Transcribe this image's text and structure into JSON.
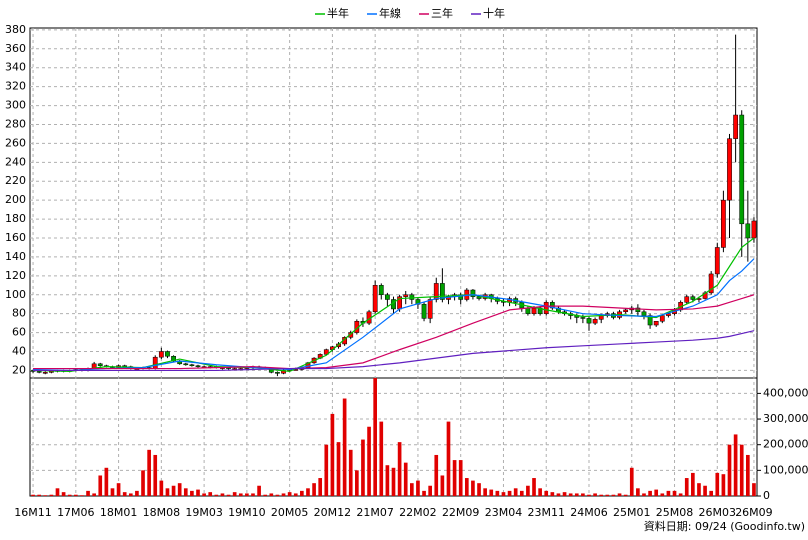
{
  "chart_data": [
    {
      "type": "candlestick",
      "categories": [
        "16M11",
        null,
        null,
        null,
        null,
        null,
        null,
        "17M06",
        null,
        null,
        null,
        null,
        null,
        null,
        "18M01",
        null,
        null,
        null,
        null,
        null,
        null,
        "18M08",
        null,
        null,
        null,
        null,
        null,
        null,
        "19M03",
        null,
        null,
        null,
        null,
        null,
        null,
        "19M10",
        null,
        null,
        null,
        null,
        null,
        null,
        "20M05",
        null,
        null,
        null,
        null,
        null,
        null,
        "20M12",
        null,
        null,
        null,
        null,
        null,
        null,
        "21M07",
        null,
        null,
        null,
        null,
        null,
        null,
        "22M02",
        null,
        null,
        null,
        null,
        null,
        null,
        "22M09",
        null,
        null,
        null,
        null,
        null,
        null,
        "23M04",
        null,
        null,
        null,
        null,
        null,
        null,
        "23M11",
        null,
        null,
        null,
        null,
        null,
        null,
        "24M06",
        null,
        null,
        null,
        null,
        null,
        null,
        "25M01",
        null,
        null,
        null,
        null,
        null,
        null,
        "25M08",
        null,
        null,
        null,
        null,
        null,
        null,
        "26M03",
        null,
        null,
        null,
        null,
        null,
        "26M09"
      ],
      "open": [
        20,
        19,
        18,
        18,
        19,
        20,
        19,
        20,
        21,
        20,
        22,
        27,
        25,
        24,
        23,
        25,
        24,
        22,
        22,
        23,
        22,
        34,
        40,
        35,
        30,
        27,
        26,
        25,
        24,
        24,
        24,
        23,
        23,
        22,
        22,
        22,
        23,
        24,
        23,
        22,
        18,
        17,
        20,
        21,
        21,
        23,
        28,
        33,
        37,
        42,
        45,
        48,
        55,
        60,
        72,
        70,
        82,
        110,
        100,
        95,
        85,
        98,
        100,
        95,
        90,
        75,
        95,
        112,
        95,
        98,
        100,
        95,
        105,
        98,
        96,
        100,
        96,
        93,
        92,
        96,
        92,
        86,
        80,
        86,
        80,
        92,
        86,
        82,
        80,
        78,
        76,
        75,
        70,
        74,
        78,
        80,
        76,
        82,
        84,
        86,
        82,
        78,
        68,
        72,
        78,
        80,
        84,
        92,
        98,
        95,
        96,
        102,
        122,
        150,
        200,
        265,
        290,
        175,
        160
      ],
      "high": [
        21,
        20,
        19,
        20,
        21,
        21,
        21,
        22,
        22,
        23,
        29,
        28,
        26,
        25,
        26,
        26,
        25,
        23,
        24,
        24,
        36,
        44,
        41,
        36,
        31,
        28,
        27,
        26,
        25,
        25,
        25,
        24,
        24,
        23,
        23,
        24,
        25,
        25,
        24,
        23,
        19,
        21,
        22,
        23,
        24,
        29,
        34,
        38,
        43,
        46,
        50,
        56,
        62,
        74,
        76,
        84,
        115,
        112,
        102,
        98,
        100,
        104,
        102,
        97,
        92,
        98,
        118,
        128,
        100,
        102,
        102,
        107,
        106,
        100,
        102,
        101,
        98,
        96,
        98,
        98,
        94,
        88,
        88,
        88,
        94,
        94,
        88,
        84,
        82,
        80,
        79,
        77,
        76,
        80,
        82,
        82,
        84,
        86,
        88,
        90,
        84,
        80,
        72,
        76,
        82,
        86,
        94,
        100,
        100,
        98,
        104,
        125,
        155,
        210,
        270,
        375,
        295,
        210,
        182
      ],
      "low": [
        17,
        17,
        16,
        17,
        18,
        18,
        18,
        19,
        19,
        19,
        21,
        24,
        23,
        22,
        22,
        23,
        21,
        21,
        21,
        21,
        21,
        32,
        33,
        29,
        26,
        25,
        24,
        23,
        22,
        22,
        22,
        21,
        21,
        20,
        20,
        21,
        21,
        22,
        21,
        17,
        14,
        16,
        19,
        20,
        20,
        22,
        27,
        32,
        36,
        40,
        43,
        46,
        53,
        58,
        66,
        68,
        80,
        95,
        88,
        80,
        82,
        90,
        90,
        85,
        72,
        70,
        92,
        92,
        90,
        94,
        90,
        93,
        95,
        94,
        94,
        92,
        90,
        88,
        88,
        88,
        82,
        78,
        78,
        78,
        78,
        84,
        80,
        78,
        74,
        70,
        70,
        62,
        68,
        70,
        76,
        74,
        74,
        80,
        80,
        78,
        74,
        64,
        66,
        70,
        76,
        78,
        82,
        90,
        92,
        92,
        95,
        100,
        118,
        145,
        160,
        240,
        140,
        135,
        155
      ],
      "close": [
        19,
        18,
        18,
        19,
        20,
        19,
        20,
        21,
        20,
        22,
        27,
        25,
        24,
        23,
        25,
        24,
        22,
        22,
        23,
        22,
        34,
        40,
        35,
        30,
        27,
        26,
        25,
        24,
        24,
        24,
        23,
        23,
        22,
        22,
        22,
        23,
        24,
        23,
        22,
        18,
        17,
        20,
        21,
        21,
        23,
        28,
        33,
        37,
        42,
        45,
        48,
        55,
        60,
        72,
        70,
        82,
        110,
        100,
        95,
        85,
        98,
        100,
        95,
        90,
        75,
        95,
        112,
        95,
        98,
        100,
        95,
        105,
        98,
        96,
        100,
        96,
        93,
        92,
        96,
        92,
        86,
        80,
        86,
        80,
        92,
        86,
        82,
        80,
        78,
        76,
        75,
        70,
        74,
        78,
        80,
        76,
        82,
        84,
        86,
        82,
        78,
        68,
        72,
        78,
        80,
        84,
        92,
        98,
        95,
        96,
        102,
        122,
        150,
        200,
        265,
        290,
        175,
        160,
        178
      ],
      "up_color": "#ff0000",
      "down_color": "#00a000",
      "series": [
        {
          "name": "半年",
          "color": "#00c000",
          "x": [
            0,
            6,
            12,
            18,
            24,
            30,
            36,
            42,
            48,
            54,
            60,
            66,
            72,
            78,
            84,
            90,
            96,
            102,
            108,
            112,
            114,
            116,
            118
          ],
          "values": [
            20,
            19,
            24,
            23,
            32,
            24,
            23,
            19,
            36,
            70,
            96,
            98,
            100,
            92,
            84,
            77,
            79,
            76,
            93,
            110,
            130,
            150,
            160
          ]
        },
        {
          "name": "年線",
          "color": "#0070ff",
          "x": [
            0,
            6,
            12,
            18,
            24,
            30,
            36,
            42,
            48,
            54,
            60,
            66,
            72,
            78,
            84,
            90,
            96,
            102,
            108,
            112,
            114,
            116,
            118
          ],
          "values": [
            21,
            20,
            22,
            23,
            30,
            26,
            23,
            21,
            28,
            55,
            85,
            96,
            100,
            95,
            88,
            80,
            78,
            77,
            88,
            100,
            115,
            125,
            138
          ]
        },
        {
          "name": "三年",
          "color": "#d00060",
          "x": [
            0,
            6,
            12,
            18,
            24,
            30,
            36,
            42,
            48,
            54,
            60,
            66,
            72,
            78,
            84,
            90,
            96,
            102,
            108,
            112,
            114,
            116,
            118
          ],
          "values": [
            22,
            22,
            22,
            22,
            22,
            23,
            24,
            22,
            23,
            28,
            42,
            55,
            70,
            84,
            88,
            88,
            86,
            84,
            85,
            88,
            92,
            96,
            100
          ]
        },
        {
          "name": "十年",
          "color": "#6020c0",
          "x": [
            0,
            6,
            12,
            18,
            24,
            30,
            36,
            42,
            48,
            54,
            60,
            66,
            72,
            78,
            84,
            90,
            96,
            102,
            108,
            112,
            114,
            116,
            118
          ],
          "values": [
            20,
            20,
            20,
            20,
            20,
            20,
            21,
            22,
            22,
            24,
            28,
            33,
            38,
            41,
            44,
            46,
            48,
            50,
            52,
            54,
            56,
            59,
            62
          ]
        }
      ],
      "ylim": [
        12,
        382
      ],
      "yticks": [
        20,
        40,
        60,
        80,
        100,
        120,
        140,
        160,
        180,
        200,
        220,
        240,
        260,
        280,
        300,
        320,
        340,
        360,
        380
      ],
      "grid": true,
      "note": "資料日期: 09/24 (Goodinfo.tw)"
    },
    {
      "type": "bar",
      "color": "#e00000",
      "values": [
        5000,
        5000,
        3000,
        5000,
        30000,
        15000,
        5000,
        5000,
        3000,
        20000,
        10000,
        80000,
        110000,
        30000,
        50000,
        15000,
        10000,
        20000,
        100000,
        180000,
        160000,
        60000,
        30000,
        40000,
        50000,
        30000,
        20000,
        25000,
        10000,
        15000,
        5000,
        10000,
        5000,
        15000,
        10000,
        10000,
        10000,
        40000,
        5000,
        10000,
        5000,
        10000,
        15000,
        10000,
        20000,
        30000,
        50000,
        70000,
        200000,
        320000,
        210000,
        380000,
        180000,
        100000,
        220000,
        270000,
        460000,
        290000,
        120000,
        110000,
        210000,
        130000,
        50000,
        60000,
        20000,
        40000,
        160000,
        80000,
        290000,
        140000,
        140000,
        70000,
        60000,
        50000,
        30000,
        25000,
        20000,
        15000,
        20000,
        30000,
        20000,
        40000,
        70000,
        30000,
        20000,
        15000,
        10000,
        15000,
        10000,
        10000,
        10000,
        5000,
        10000,
        5000,
        5000,
        5000,
        10000,
        5000,
        110000,
        30000,
        10000,
        20000,
        25000,
        10000,
        20000,
        20000,
        10000,
        70000,
        90000,
        50000,
        40000,
        20000,
        90000,
        85000,
        200000,
        240000,
        200000,
        160000,
        50000
      ],
      "ylim": [
        0,
        460000
      ],
      "yticks": [
        0,
        {
          "value": 100000,
          "label": "100,000"
        },
        {
          "value": 200000,
          "label": "200,000"
        },
        {
          "value": 300000,
          "label": "300,000"
        },
        {
          "value": 400000,
          "label": "400,000"
        }
      ],
      "grid": true
    }
  ]
}
